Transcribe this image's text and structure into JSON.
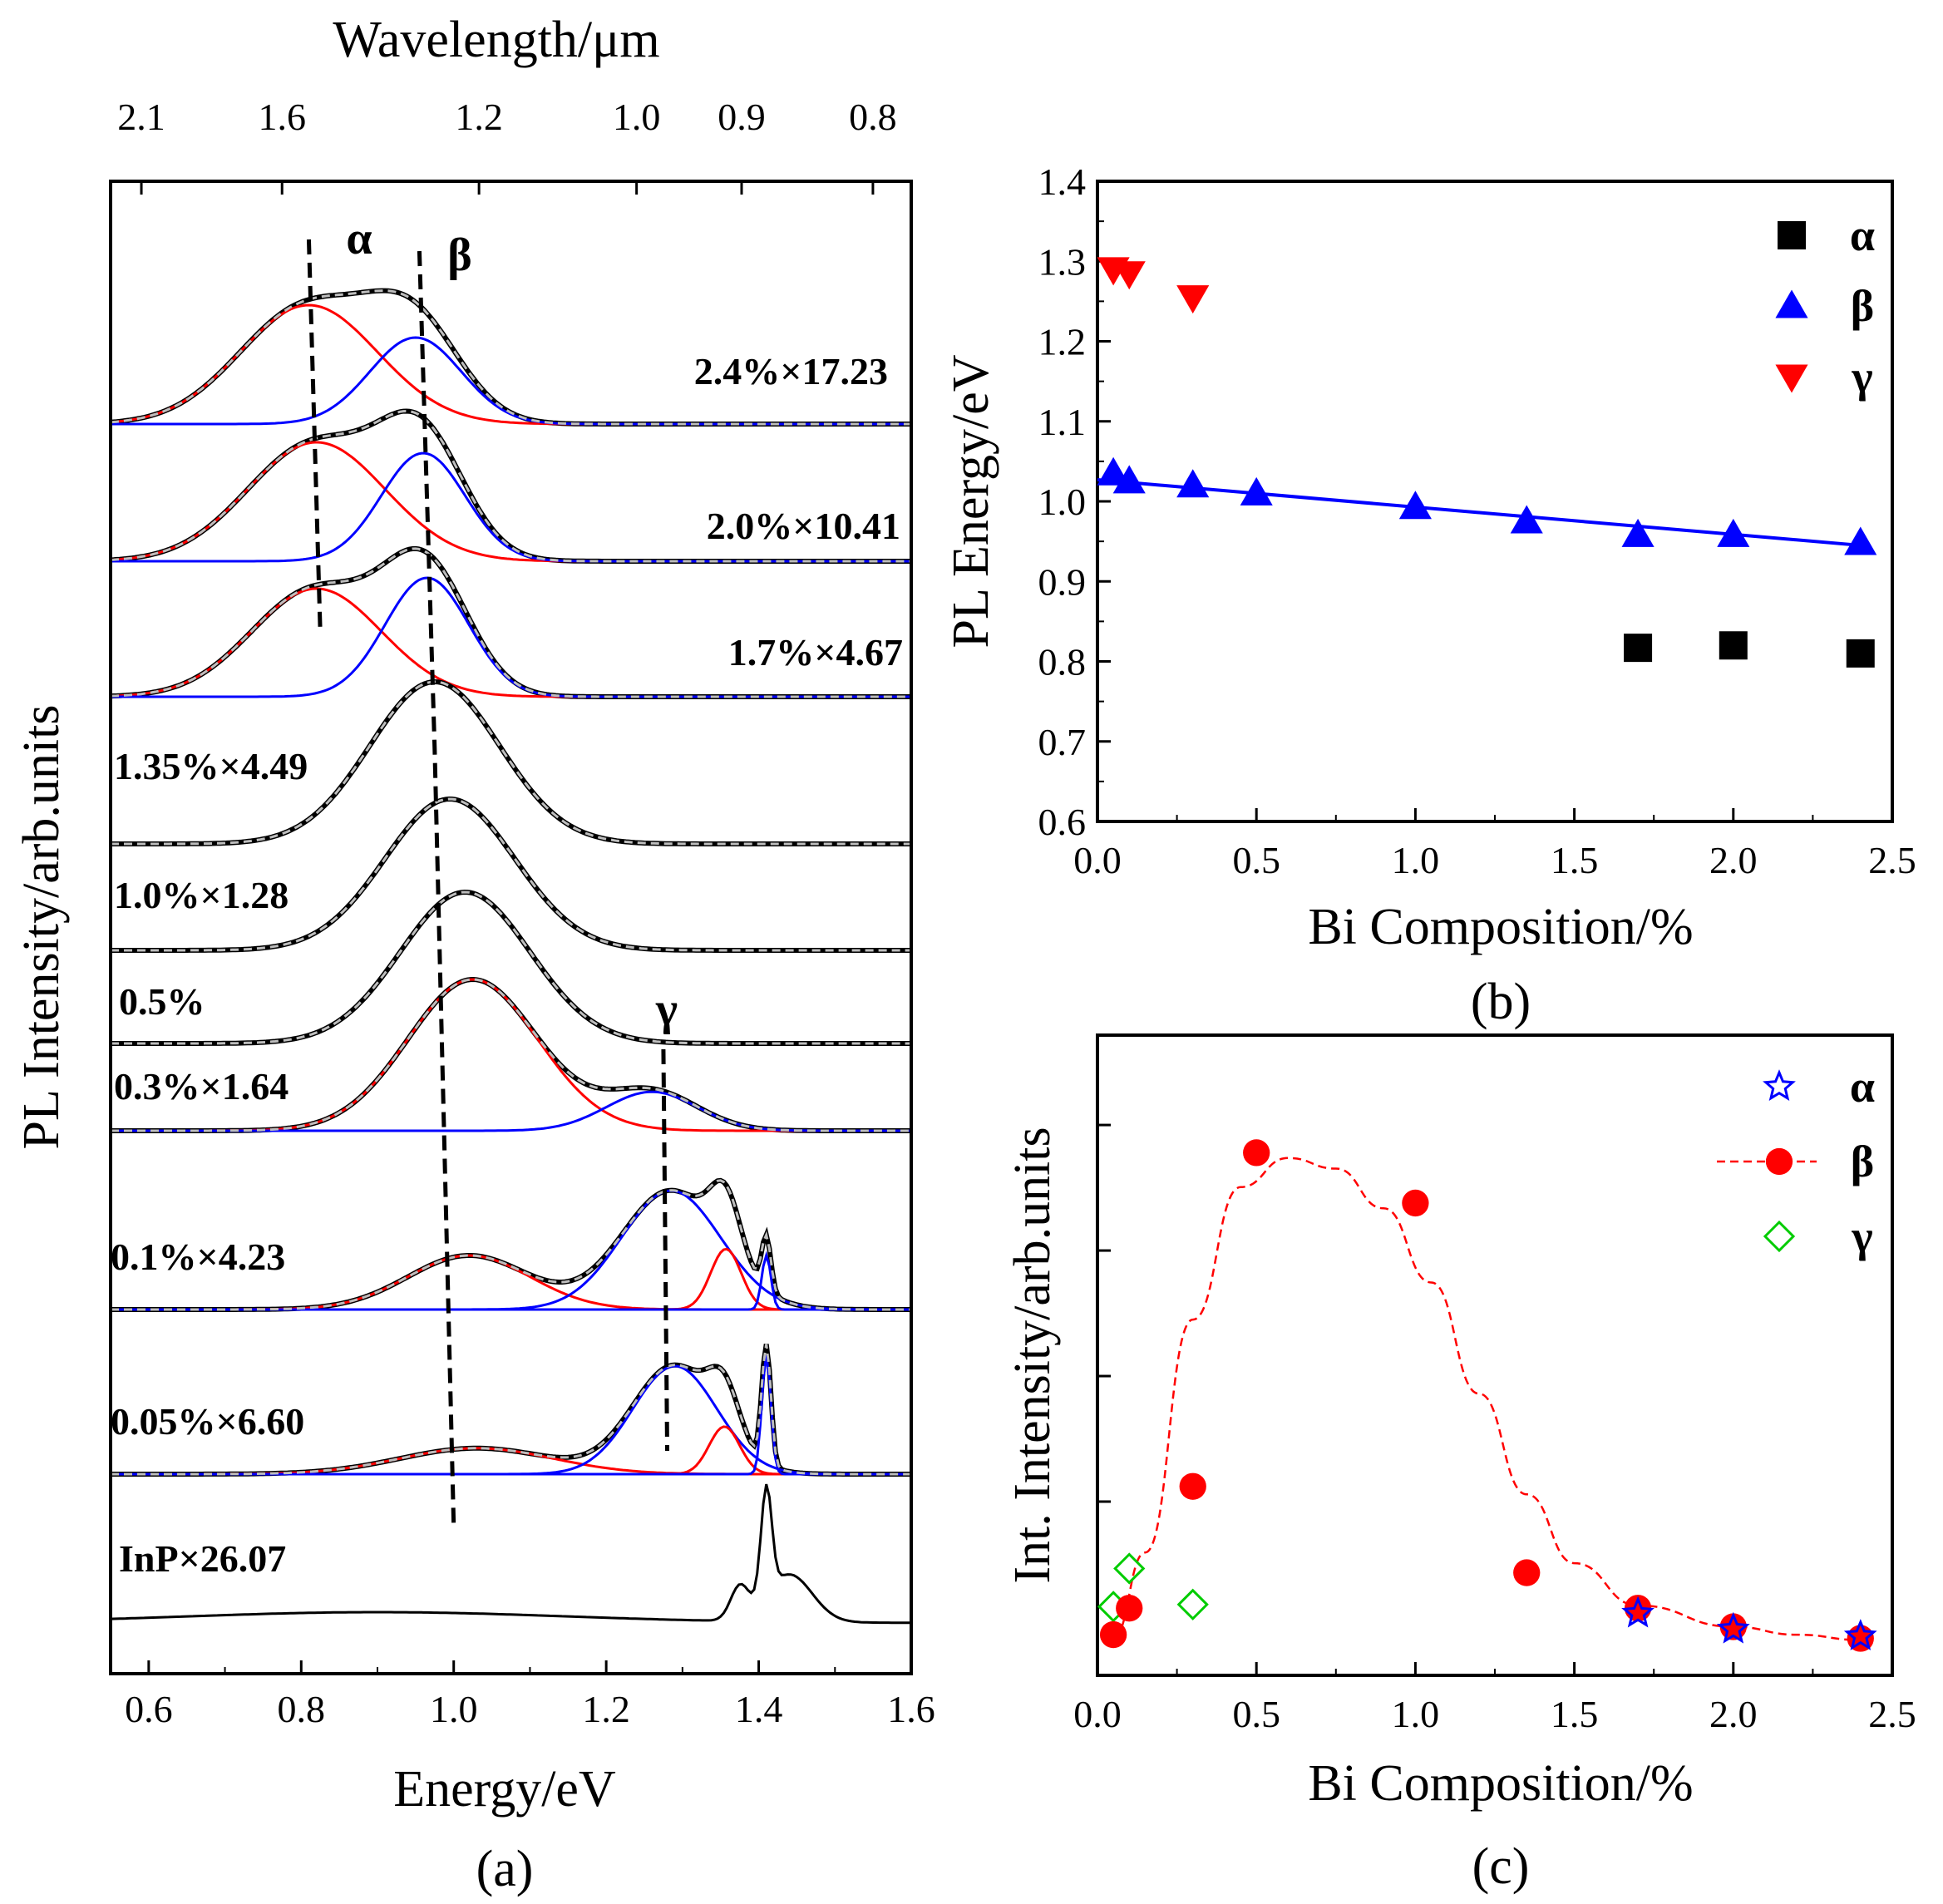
{
  "chart_data": [
    {
      "panel": "(a)",
      "type": "line",
      "xlabel": "Energy/eV",
      "ylabel": "PL Intensity/arb.units",
      "x2label": "Wavelength/μm",
      "xlim": [
        0.55,
        1.6
      ],
      "xticks": [
        "0.6",
        "0.8",
        "1.0",
        "1.2",
        "1.4",
        "1.6"
      ],
      "x2ticks": [
        "2.1",
        "1.6",
        "1.2",
        "1.0",
        "0.9",
        "0.8"
      ],
      "peak_labels": [
        "α",
        "β",
        "γ"
      ],
      "colors": {
        "measured": "#b0b0b0",
        "fit_total": "#000000",
        "alpha_or_red": "#ff0000",
        "beta_or_blue": "#0000ff"
      },
      "series": [
        {
          "name": "2.4%×17.23",
          "components": [
            {
              "color": "red",
              "center": 0.81,
              "width": 0.09,
              "amp": 0.55
            },
            {
              "color": "blue",
              "center": 0.95,
              "width": 0.06,
              "amp": 0.4
            }
          ]
        },
        {
          "name": "2.0%×10.41",
          "components": [
            {
              "color": "red",
              "center": 0.82,
              "width": 0.09,
              "amp": 0.55
            },
            {
              "color": "blue",
              "center": 0.96,
              "width": 0.055,
              "amp": 0.5
            }
          ]
        },
        {
          "name": "1.7%×4.67",
          "components": [
            {
              "color": "red",
              "center": 0.82,
              "width": 0.085,
              "amp": 0.5
            },
            {
              "color": "blue",
              "center": 0.965,
              "width": 0.055,
              "amp": 0.55
            }
          ]
        },
        {
          "name": "1.35%×4.49",
          "components": [
            {
              "color": "black",
              "center": 0.975,
              "width": 0.085,
              "amp": 0.75
            }
          ]
        },
        {
          "name": "1.0%×1.28",
          "components": [
            {
              "color": "black",
              "center": 0.995,
              "width": 0.085,
              "amp": 0.7
            }
          ]
        },
        {
          "name": "0.5%",
          "components": [
            {
              "color": "black",
              "center": 1.015,
              "width": 0.085,
              "amp": 0.7
            }
          ]
        },
        {
          "name": "0.3%×1.64",
          "components": [
            {
              "color": "red",
              "center": 1.025,
              "width": 0.085,
              "amp": 0.7
            },
            {
              "color": "blue",
              "center": 1.26,
              "width": 0.06,
              "amp": 0.18
            }
          ]
        },
        {
          "name": "0.1%×4.23",
          "components": [
            {
              "color": "red",
              "center": 1.02,
              "width": 0.08,
              "amp": 0.25
            },
            {
              "color": "blue",
              "center": 1.285,
              "width": 0.065,
              "amp": 0.55
            },
            {
              "color": "red",
              "center": 1.357,
              "width": 0.02,
              "amp": 0.28
            },
            {
              "color": "blue",
              "center": 1.41,
              "width": 0.006,
              "amp": 0.25
            }
          ]
        },
        {
          "name": "0.05%×6.60",
          "components": [
            {
              "color": "red",
              "center": 1.03,
              "width": 0.1,
              "amp": 0.12
            },
            {
              "color": "blue",
              "center": 1.29,
              "width": 0.055,
              "amp": 0.5
            },
            {
              "color": "red",
              "center": 1.355,
              "width": 0.02,
              "amp": 0.22
            },
            {
              "color": "blue",
              "center": 1.41,
              "width": 0.006,
              "amp": 0.55
            }
          ]
        },
        {
          "name": "InP×26.07",
          "components": [
            {
              "color": "black",
              "center": 0.9,
              "width": 0.25,
              "amp": 0.05
            },
            {
              "color": "black",
              "center": 1.375,
              "width": 0.012,
              "amp": 0.15
            },
            {
              "color": "black",
              "center": 1.41,
              "width": 0.007,
              "amp": 0.5
            },
            {
              "color": "black",
              "center": 1.44,
              "width": 0.03,
              "amp": 0.22
            }
          ]
        }
      ],
      "guide_lines": [
        {
          "name": "α",
          "points": [
            [
              0.81,
              0
            ],
            [
              0.825,
              2.4
            ]
          ]
        },
        {
          "name": "β",
          "points": [
            [
              0.96,
              0
            ],
            [
              0.975,
              3.2
            ],
            [
              1.0,
              8.9
            ]
          ]
        },
        {
          "name": "γ",
          "points": [
            [
              1.275,
              6.4
            ],
            [
              1.28,
              8.4
            ]
          ]
        }
      ]
    },
    {
      "panel": "(b)",
      "type": "scatter",
      "xlabel": "Bi Composition/%",
      "ylabel": "PL Energy/eV",
      "xlim": [
        0.0,
        2.5
      ],
      "ylim": [
        0.6,
        1.4
      ],
      "xticks": [
        "0.0",
        "0.5",
        "1.0",
        "1.5",
        "2.0",
        "2.5"
      ],
      "yticks": [
        "0.6",
        "0.7",
        "0.8",
        "0.9",
        "1.0",
        "1.1",
        "1.2",
        "1.3",
        "1.4"
      ],
      "legend_position": "top-right",
      "series": [
        {
          "name": "α",
          "marker": "square",
          "color": "#000000",
          "x": [
            1.7,
            2.0,
            2.4
          ],
          "y": [
            0.817,
            0.82,
            0.81
          ]
        },
        {
          "name": "β",
          "marker": "triangle-up",
          "color": "#0000ff",
          "x": [
            0.05,
            0.1,
            0.3,
            0.5,
            1.0,
            1.35,
            1.7,
            2.0,
            2.4
          ],
          "y": [
            1.035,
            1.025,
            1.02,
            1.01,
            0.993,
            0.975,
            0.958,
            0.958,
            0.948
          ]
        },
        {
          "name": "γ",
          "marker": "triangle-down",
          "color": "#ff0000",
          "x": [
            0.05,
            0.1,
            0.3
          ],
          "y": [
            1.29,
            1.285,
            1.255
          ]
        }
      ],
      "fit_line": {
        "color": "#0000ff",
        "x": [
          0.0,
          2.4
        ],
        "y": [
          1.027,
          0.945
        ]
      }
    },
    {
      "panel": "(c)",
      "type": "scatter",
      "xlabel": "Bi Composition/%",
      "ylabel": "Int. Intensity/arb.units",
      "xlim": [
        0.0,
        2.5
      ],
      "ylim": [
        0.0,
        1.0
      ],
      "xticks": [
        "0.0",
        "0.5",
        "1.0",
        "1.5",
        "2.0",
        "2.5"
      ],
      "legend_position": "top-right",
      "series": [
        {
          "name": "α",
          "marker": "star-open",
          "color": "#0000ff",
          "x": [
            1.7,
            2.0,
            2.4
          ],
          "y": [
            0.065,
            0.035,
            0.022
          ]
        },
        {
          "name": "β",
          "marker": "circle-filled",
          "color": "#ff0000",
          "x": [
            0.05,
            0.1,
            0.3,
            0.5,
            1.0,
            1.35,
            1.7,
            2.0,
            2.4
          ],
          "y": [
            0.025,
            0.075,
            0.305,
            0.935,
            0.84,
            0.142,
            0.075,
            0.04,
            0.018
          ]
        },
        {
          "name": "γ",
          "marker": "diamond-open",
          "color": "#00cc00",
          "x": [
            0.05,
            0.1,
            0.3
          ],
          "y": [
            0.078,
            0.15,
            0.082
          ]
        }
      ],
      "fit_curve": {
        "color": "#ff0000",
        "style": "dashed",
        "x": [
          0.05,
          0.15,
          0.3,
          0.45,
          0.6,
          0.75,
          0.9,
          1.05,
          1.2,
          1.35,
          1.5,
          1.7,
          2.0,
          2.2,
          2.4
        ],
        "y": [
          0.02,
          0.18,
          0.62,
          0.87,
          0.925,
          0.905,
          0.83,
          0.69,
          0.48,
          0.29,
          0.16,
          0.08,
          0.04,
          0.025,
          0.015
        ]
      }
    }
  ]
}
